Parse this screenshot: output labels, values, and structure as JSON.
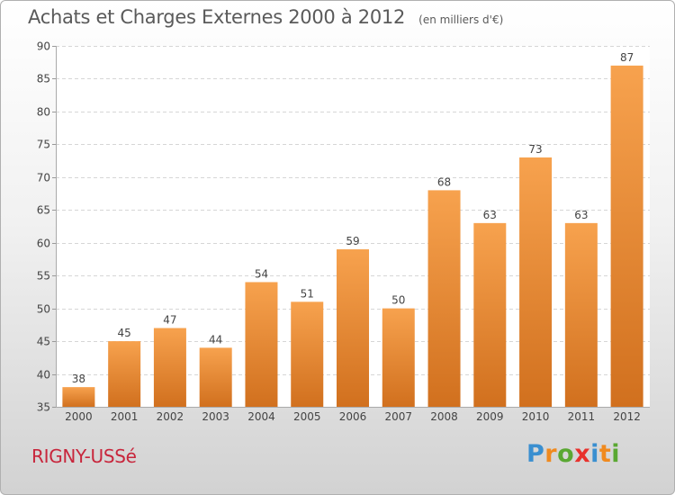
{
  "chart_data": {
    "type": "bar",
    "title": "Achats et Charges Externes 2000 à 2012",
    "unit": "(en milliers d'€)",
    "categories": [
      "2000",
      "2001",
      "2002",
      "2003",
      "2004",
      "2005",
      "2006",
      "2007",
      "2008",
      "2009",
      "2010",
      "2011",
      "2012"
    ],
    "values": [
      38,
      45,
      47,
      44,
      54,
      51,
      59,
      50,
      68,
      63,
      73,
      63,
      87
    ],
    "ylim": [
      35,
      90
    ],
    "yticks": [
      35,
      40,
      45,
      50,
      55,
      60,
      65,
      70,
      75,
      80,
      85,
      90
    ],
    "xlabel": "",
    "ylabel": "",
    "grid": true,
    "bar_color_top": "#f7a24e",
    "bar_color_bottom": "#d1701e"
  },
  "footer": {
    "place": "RIGNY-USSé",
    "brand_letters": [
      "P",
      "r",
      "o",
      "x",
      "i",
      "t",
      "i"
    ],
    "brand_colors": [
      "#3a8fd0",
      "#f08a1e",
      "#5aa832",
      "#e8312c",
      "#3a8fd0",
      "#f08a1e",
      "#5aa832"
    ]
  }
}
